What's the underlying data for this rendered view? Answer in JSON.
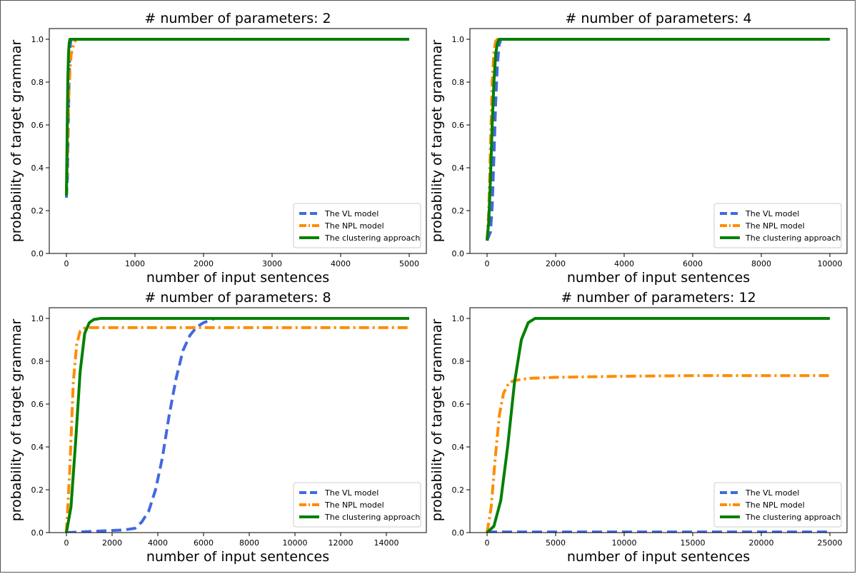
{
  "figure": {
    "background": "#ffffff"
  },
  "colors": {
    "vl": "#4169e1",
    "npl": "#ff8c00",
    "cluster": "#008000"
  },
  "chart_data": [
    {
      "type": "line",
      "title": "# number of parameters: 2",
      "xlabel": "number of input sentences",
      "ylabel": "probability of target grammar",
      "xlim": [
        -250,
        5250
      ],
      "ylim": [
        0,
        1.05
      ],
      "xticks": [
        0,
        1000,
        2000,
        3000,
        4000,
        5000
      ],
      "xtick_labels": [
        "0",
        "1000",
        "2000",
        "3000",
        "4000",
        "5000"
      ],
      "yticks": [
        0,
        0.2,
        0.4,
        0.6,
        0.8,
        1.0
      ],
      "ytick_labels": [
        "0.0",
        "0.2",
        "0.4",
        "0.6",
        "0.8",
        "1.0"
      ],
      "legend": "lower-right",
      "series": [
        {
          "name": "The VL model",
          "style": "dashed",
          "x": [
            0,
            15,
            25,
            35,
            45,
            55,
            70,
            5000
          ],
          "y": [
            0.26,
            0.35,
            0.55,
            0.75,
            0.9,
            0.97,
            1.0,
            1.0
          ]
        },
        {
          "name": "The NPL model",
          "style": "dashdot",
          "x": [
            0,
            15,
            30,
            50,
            70,
            100,
            140,
            5000
          ],
          "y": [
            0.27,
            0.45,
            0.7,
            0.85,
            0.93,
            0.97,
            1.0,
            1.0
          ]
        },
        {
          "name": "The clustering approach",
          "style": "solid",
          "x": [
            0,
            10,
            20,
            30,
            40,
            50,
            5000
          ],
          "y": [
            0.27,
            0.55,
            0.8,
            0.93,
            0.98,
            1.0,
            1.0
          ]
        }
      ]
    },
    {
      "type": "line",
      "title": "# number of parameters: 4",
      "xlabel": "number of input sentences",
      "ylabel": "probability of target grammar",
      "xlim": [
        -500,
        10500
      ],
      "ylim": [
        0,
        1.05
      ],
      "xticks": [
        0,
        2000,
        4000,
        6000,
        8000,
        10000
      ],
      "xtick_labels": [
        "0",
        "2000",
        "4000",
        "6000",
        "8000",
        "10000"
      ],
      "yticks": [
        0,
        0.2,
        0.4,
        0.6,
        0.8,
        1.0
      ],
      "ytick_labels": [
        "0.0",
        "0.2",
        "0.4",
        "0.6",
        "0.8",
        "1.0"
      ],
      "legend": "lower-right",
      "series": [
        {
          "name": "The VL model",
          "style": "dashed",
          "x": [
            0,
            100,
            150,
            200,
            250,
            300,
            350,
            400,
            10000
          ],
          "y": [
            0.06,
            0.1,
            0.22,
            0.45,
            0.7,
            0.88,
            0.97,
            1.0,
            1.0
          ]
        },
        {
          "name": "The NPL model",
          "style": "dashdot",
          "x": [
            0,
            50,
            100,
            150,
            200,
            250,
            300,
            10000
          ],
          "y": [
            0.06,
            0.2,
            0.5,
            0.8,
            0.94,
            0.99,
            1.0,
            1.0
          ]
        },
        {
          "name": "The clustering approach",
          "style": "solid",
          "x": [
            0,
            50,
            100,
            150,
            200,
            250,
            300,
            350,
            10000
          ],
          "y": [
            0.06,
            0.15,
            0.35,
            0.6,
            0.8,
            0.93,
            0.98,
            1.0,
            1.0
          ]
        }
      ]
    },
    {
      "type": "line",
      "title": "# number of parameters: 8",
      "xlabel": "number of input sentences",
      "ylabel": "probability of target grammar",
      "xlim": [
        -750,
        15750
      ],
      "ylim": [
        0,
        1.05
      ],
      "xticks": [
        0,
        2000,
        4000,
        6000,
        8000,
        10000,
        12000,
        14000
      ],
      "xtick_labels": [
        "0",
        "2000",
        "4000",
        "6000",
        "8000",
        "10000",
        "12000",
        "14000"
      ],
      "yticks": [
        0,
        0.2,
        0.4,
        0.6,
        0.8,
        1.0
      ],
      "ytick_labels": [
        "0.0",
        "0.2",
        "0.4",
        "0.6",
        "0.8",
        "1.0"
      ],
      "legend": "lower-right",
      "series": [
        {
          "name": "The VL model",
          "style": "dashed",
          "x": [
            0,
            1000,
            2000,
            2500,
            3000,
            3300,
            3600,
            3900,
            4200,
            4500,
            4800,
            5100,
            5400,
            5700,
            6000,
            6500,
            15000
          ],
          "y": [
            0.0,
            0.005,
            0.01,
            0.012,
            0.02,
            0.05,
            0.1,
            0.2,
            0.35,
            0.55,
            0.72,
            0.85,
            0.92,
            0.96,
            0.98,
            1.0,
            1.0
          ]
        },
        {
          "name": "The NPL model",
          "style": "dashdot",
          "x": [
            0,
            150,
            300,
            450,
            600,
            800,
            1000,
            15000
          ],
          "y": [
            0.0,
            0.3,
            0.7,
            0.88,
            0.94,
            0.955,
            0.957,
            0.957
          ]
        },
        {
          "name": "The clustering approach",
          "style": "solid",
          "x": [
            0,
            200,
            400,
            600,
            800,
            1000,
            1200,
            1500,
            15000
          ],
          "y": [
            0.0,
            0.12,
            0.42,
            0.75,
            0.93,
            0.98,
            0.995,
            1.0,
            1.0
          ]
        }
      ]
    },
    {
      "type": "line",
      "title": "# number of parameters: 12",
      "xlabel": "number of input sentences",
      "ylabel": "probability of target grammar",
      "xlim": [
        -1250,
        26250
      ],
      "ylim": [
        0,
        1.05
      ],
      "xticks": [
        0,
        5000,
        10000,
        15000,
        20000,
        25000
      ],
      "xtick_labels": [
        "0",
        "5000",
        "10000",
        "15000",
        "20000",
        "25000"
      ],
      "yticks": [
        0,
        0.2,
        0.4,
        0.6,
        0.8,
        1.0
      ],
      "ytick_labels": [
        "0.0",
        "0.2",
        "0.4",
        "0.6",
        "0.8",
        "1.0"
      ],
      "legend": "lower-right",
      "series": [
        {
          "name": "The VL model",
          "style": "dashed",
          "x": [
            0,
            25000
          ],
          "y": [
            0.003,
            0.003
          ]
        },
        {
          "name": "The NPL model",
          "style": "dashdot",
          "x": [
            0,
            300,
            600,
            900,
            1200,
            1600,
            2000,
            3000,
            5000,
            10000,
            15000,
            25000
          ],
          "y": [
            0.0,
            0.12,
            0.35,
            0.55,
            0.65,
            0.7,
            0.71,
            0.72,
            0.725,
            0.73,
            0.733,
            0.733
          ]
        },
        {
          "name": "The clustering approach",
          "style": "solid",
          "x": [
            0,
            500,
            1000,
            1500,
            2000,
            2500,
            3000,
            3500,
            4000,
            25000
          ],
          "y": [
            0.0,
            0.03,
            0.15,
            0.4,
            0.7,
            0.9,
            0.98,
            1.0,
            1.0,
            1.0
          ]
        }
      ]
    }
  ]
}
